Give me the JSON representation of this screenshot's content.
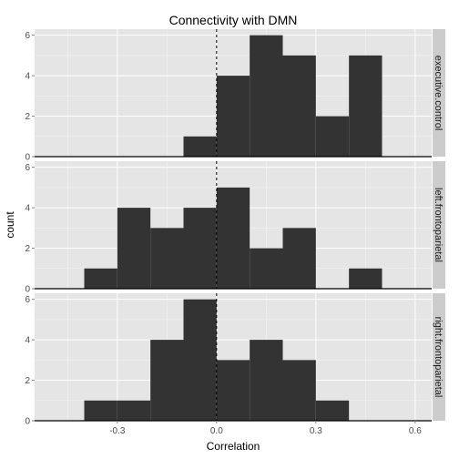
{
  "chart_data": {
    "type": "bar",
    "title": "Connectivity with DMN",
    "xlabel": "Correlation",
    "ylabel": "count",
    "xlim": [
      -0.55,
      0.65
    ],
    "ylim": [
      0,
      6.3
    ],
    "xticks": [
      -0.3,
      0.0,
      0.3,
      0.6
    ],
    "xtick_labels": [
      "-0.3",
      "0.0",
      "0.3",
      "0.6"
    ],
    "yticks": [
      0,
      2,
      4,
      6
    ],
    "ytick_labels": [
      "0",
      "2",
      "4",
      "6"
    ],
    "bin_edges": [
      -0.4,
      -0.3,
      -0.2,
      -0.1,
      0.0,
      0.1,
      0.2,
      0.3,
      0.4,
      0.5
    ],
    "reference_line_x": 0.0,
    "grid": true,
    "bar_color": "#333333",
    "panel_color": "#e5e5e5",
    "strip_color": "#cccccc",
    "panels": [
      {
        "name": "executive.control",
        "counts": [
          0,
          0,
          0,
          1,
          4,
          6,
          5,
          2,
          5
        ]
      },
      {
        "name": "left.frontoparietal",
        "counts": [
          1,
          4,
          3,
          4,
          5,
          2,
          3,
          0,
          1
        ]
      },
      {
        "name": "right.frontoparietal",
        "counts": [
          1,
          1,
          4,
          6,
          3,
          4,
          3,
          1,
          0
        ]
      }
    ]
  }
}
